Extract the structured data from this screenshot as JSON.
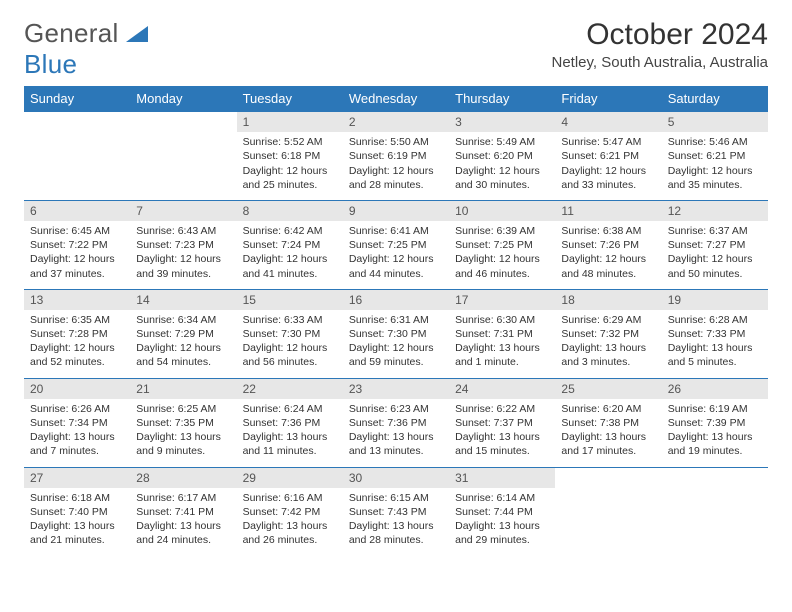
{
  "brand": {
    "top": "General",
    "bottom": "Blue"
  },
  "title": "October 2024",
  "subtitle": "Netley, South Australia, Australia",
  "colors": {
    "accent": "#2c77b8",
    "dayStrip": "#e7e7e7",
    "text": "#333333",
    "bg": "#ffffff"
  },
  "weekdays": [
    "Sunday",
    "Monday",
    "Tuesday",
    "Wednesday",
    "Thursday",
    "Friday",
    "Saturday"
  ],
  "weeks": [
    [
      {
        "empty": true
      },
      {
        "empty": true
      },
      {
        "num": "1",
        "sunrise": "Sunrise: 5:52 AM",
        "sunset": "Sunset: 6:18 PM",
        "day1": "Daylight: 12 hours",
        "day2": "and 25 minutes."
      },
      {
        "num": "2",
        "sunrise": "Sunrise: 5:50 AM",
        "sunset": "Sunset: 6:19 PM",
        "day1": "Daylight: 12 hours",
        "day2": "and 28 minutes."
      },
      {
        "num": "3",
        "sunrise": "Sunrise: 5:49 AM",
        "sunset": "Sunset: 6:20 PM",
        "day1": "Daylight: 12 hours",
        "day2": "and 30 minutes."
      },
      {
        "num": "4",
        "sunrise": "Sunrise: 5:47 AM",
        "sunset": "Sunset: 6:21 PM",
        "day1": "Daylight: 12 hours",
        "day2": "and 33 minutes."
      },
      {
        "num": "5",
        "sunrise": "Sunrise: 5:46 AM",
        "sunset": "Sunset: 6:21 PM",
        "day1": "Daylight: 12 hours",
        "day2": "and 35 minutes."
      }
    ],
    [
      {
        "num": "6",
        "sunrise": "Sunrise: 6:45 AM",
        "sunset": "Sunset: 7:22 PM",
        "day1": "Daylight: 12 hours",
        "day2": "and 37 minutes."
      },
      {
        "num": "7",
        "sunrise": "Sunrise: 6:43 AM",
        "sunset": "Sunset: 7:23 PM",
        "day1": "Daylight: 12 hours",
        "day2": "and 39 minutes."
      },
      {
        "num": "8",
        "sunrise": "Sunrise: 6:42 AM",
        "sunset": "Sunset: 7:24 PM",
        "day1": "Daylight: 12 hours",
        "day2": "and 41 minutes."
      },
      {
        "num": "9",
        "sunrise": "Sunrise: 6:41 AM",
        "sunset": "Sunset: 7:25 PM",
        "day1": "Daylight: 12 hours",
        "day2": "and 44 minutes."
      },
      {
        "num": "10",
        "sunrise": "Sunrise: 6:39 AM",
        "sunset": "Sunset: 7:25 PM",
        "day1": "Daylight: 12 hours",
        "day2": "and 46 minutes."
      },
      {
        "num": "11",
        "sunrise": "Sunrise: 6:38 AM",
        "sunset": "Sunset: 7:26 PM",
        "day1": "Daylight: 12 hours",
        "day2": "and 48 minutes."
      },
      {
        "num": "12",
        "sunrise": "Sunrise: 6:37 AM",
        "sunset": "Sunset: 7:27 PM",
        "day1": "Daylight: 12 hours",
        "day2": "and 50 minutes."
      }
    ],
    [
      {
        "num": "13",
        "sunrise": "Sunrise: 6:35 AM",
        "sunset": "Sunset: 7:28 PM",
        "day1": "Daylight: 12 hours",
        "day2": "and 52 minutes."
      },
      {
        "num": "14",
        "sunrise": "Sunrise: 6:34 AM",
        "sunset": "Sunset: 7:29 PM",
        "day1": "Daylight: 12 hours",
        "day2": "and 54 minutes."
      },
      {
        "num": "15",
        "sunrise": "Sunrise: 6:33 AM",
        "sunset": "Sunset: 7:30 PM",
        "day1": "Daylight: 12 hours",
        "day2": "and 56 minutes."
      },
      {
        "num": "16",
        "sunrise": "Sunrise: 6:31 AM",
        "sunset": "Sunset: 7:30 PM",
        "day1": "Daylight: 12 hours",
        "day2": "and 59 minutes."
      },
      {
        "num": "17",
        "sunrise": "Sunrise: 6:30 AM",
        "sunset": "Sunset: 7:31 PM",
        "day1": "Daylight: 13 hours",
        "day2": "and 1 minute."
      },
      {
        "num": "18",
        "sunrise": "Sunrise: 6:29 AM",
        "sunset": "Sunset: 7:32 PM",
        "day1": "Daylight: 13 hours",
        "day2": "and 3 minutes."
      },
      {
        "num": "19",
        "sunrise": "Sunrise: 6:28 AM",
        "sunset": "Sunset: 7:33 PM",
        "day1": "Daylight: 13 hours",
        "day2": "and 5 minutes."
      }
    ],
    [
      {
        "num": "20",
        "sunrise": "Sunrise: 6:26 AM",
        "sunset": "Sunset: 7:34 PM",
        "day1": "Daylight: 13 hours",
        "day2": "and 7 minutes."
      },
      {
        "num": "21",
        "sunrise": "Sunrise: 6:25 AM",
        "sunset": "Sunset: 7:35 PM",
        "day1": "Daylight: 13 hours",
        "day2": "and 9 minutes."
      },
      {
        "num": "22",
        "sunrise": "Sunrise: 6:24 AM",
        "sunset": "Sunset: 7:36 PM",
        "day1": "Daylight: 13 hours",
        "day2": "and 11 minutes."
      },
      {
        "num": "23",
        "sunrise": "Sunrise: 6:23 AM",
        "sunset": "Sunset: 7:36 PM",
        "day1": "Daylight: 13 hours",
        "day2": "and 13 minutes."
      },
      {
        "num": "24",
        "sunrise": "Sunrise: 6:22 AM",
        "sunset": "Sunset: 7:37 PM",
        "day1": "Daylight: 13 hours",
        "day2": "and 15 minutes."
      },
      {
        "num": "25",
        "sunrise": "Sunrise: 6:20 AM",
        "sunset": "Sunset: 7:38 PM",
        "day1": "Daylight: 13 hours",
        "day2": "and 17 minutes."
      },
      {
        "num": "26",
        "sunrise": "Sunrise: 6:19 AM",
        "sunset": "Sunset: 7:39 PM",
        "day1": "Daylight: 13 hours",
        "day2": "and 19 minutes."
      }
    ],
    [
      {
        "num": "27",
        "sunrise": "Sunrise: 6:18 AM",
        "sunset": "Sunset: 7:40 PM",
        "day1": "Daylight: 13 hours",
        "day2": "and 21 minutes."
      },
      {
        "num": "28",
        "sunrise": "Sunrise: 6:17 AM",
        "sunset": "Sunset: 7:41 PM",
        "day1": "Daylight: 13 hours",
        "day2": "and 24 minutes."
      },
      {
        "num": "29",
        "sunrise": "Sunrise: 6:16 AM",
        "sunset": "Sunset: 7:42 PM",
        "day1": "Daylight: 13 hours",
        "day2": "and 26 minutes."
      },
      {
        "num": "30",
        "sunrise": "Sunrise: 6:15 AM",
        "sunset": "Sunset: 7:43 PM",
        "day1": "Daylight: 13 hours",
        "day2": "and 28 minutes."
      },
      {
        "num": "31",
        "sunrise": "Sunrise: 6:14 AM",
        "sunset": "Sunset: 7:44 PM",
        "day1": "Daylight: 13 hours",
        "day2": "and 29 minutes."
      },
      {
        "empty": true
      },
      {
        "empty": true
      }
    ]
  ]
}
